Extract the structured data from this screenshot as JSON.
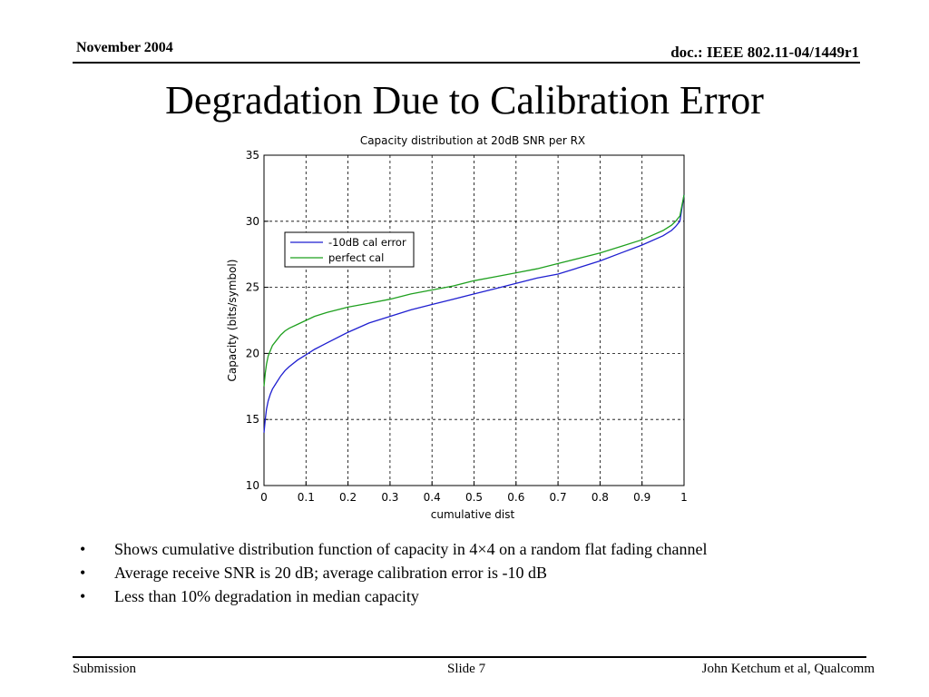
{
  "header": {
    "date": "November 2004",
    "doc": "doc.: IEEE 802.11-04/1449r1"
  },
  "slide": {
    "title": "Degradation Due to Calibration Error"
  },
  "bullets": [
    "Shows cumulative distribution function of capacity in 4×4 on a random flat fading channel",
    "Average receive SNR is 20 dB; average calibration error is -10 dB",
    "Less than 10% degradation in median capacity"
  ],
  "footer": {
    "left": "Submission",
    "center": "Slide 7",
    "right": "John Ketchum et al, Qualcomm"
  },
  "chart_data": {
    "type": "line",
    "title": "Capacity distribution at 20dB SNR per RX",
    "xlabel": "cumulative dist",
    "ylabel": "Capacity (bits/symbol)",
    "xlim": [
      0,
      1
    ],
    "ylim": [
      10,
      35
    ],
    "xticks": [
      0,
      0.1,
      0.2,
      0.3,
      0.4,
      0.5,
      0.6,
      0.7,
      0.8,
      0.9,
      1
    ],
    "xtick_labels": [
      "0",
      "0.1",
      "0.2",
      "0.3",
      "0.4",
      "0.5",
      "0.6",
      "0.7",
      "0.8",
      "0.9",
      "1"
    ],
    "yticks": [
      10,
      15,
      20,
      25,
      30,
      35
    ],
    "ytick_labels": [
      "10",
      "15",
      "20",
      "25",
      "30",
      "35"
    ],
    "grid": true,
    "legend_position": "upper-left",
    "series": [
      {
        "name": "-10dB cal error",
        "color": "#1f1fd0",
        "x": [
          0,
          0.003,
          0.006,
          0.01,
          0.015,
          0.02,
          0.03,
          0.04,
          0.05,
          0.06,
          0.08,
          0.1,
          0.12,
          0.15,
          0.2,
          0.25,
          0.3,
          0.35,
          0.4,
          0.45,
          0.5,
          0.55,
          0.6,
          0.65,
          0.7,
          0.75,
          0.8,
          0.85,
          0.9,
          0.95,
          0.97,
          0.98,
          0.99,
          0.995,
          1
        ],
        "y": [
          14.0,
          15.0,
          15.8,
          16.4,
          16.9,
          17.3,
          17.8,
          18.3,
          18.7,
          19.0,
          19.5,
          19.9,
          20.3,
          20.8,
          21.6,
          22.3,
          22.8,
          23.3,
          23.7,
          24.1,
          24.5,
          24.9,
          25.3,
          25.7,
          26.0,
          26.5,
          27.0,
          27.6,
          28.2,
          28.9,
          29.3,
          29.6,
          30.0,
          31.0,
          32.0
        ]
      },
      {
        "name": "perfect cal",
        "color": "#1fa01f",
        "x": [
          0,
          0.003,
          0.006,
          0.01,
          0.015,
          0.02,
          0.03,
          0.04,
          0.05,
          0.06,
          0.08,
          0.1,
          0.12,
          0.15,
          0.2,
          0.25,
          0.3,
          0.35,
          0.4,
          0.45,
          0.5,
          0.55,
          0.6,
          0.65,
          0.7,
          0.75,
          0.8,
          0.85,
          0.9,
          0.95,
          0.97,
          0.98,
          0.99,
          0.995,
          1
        ],
        "y": [
          17.5,
          18.5,
          19.2,
          19.8,
          20.2,
          20.6,
          21.0,
          21.4,
          21.7,
          21.9,
          22.2,
          22.5,
          22.8,
          23.1,
          23.5,
          23.8,
          24.1,
          24.5,
          24.8,
          25.1,
          25.5,
          25.8,
          26.1,
          26.4,
          26.8,
          27.2,
          27.6,
          28.1,
          28.6,
          29.3,
          29.7,
          30.0,
          30.4,
          31.2,
          32.0
        ]
      }
    ]
  }
}
